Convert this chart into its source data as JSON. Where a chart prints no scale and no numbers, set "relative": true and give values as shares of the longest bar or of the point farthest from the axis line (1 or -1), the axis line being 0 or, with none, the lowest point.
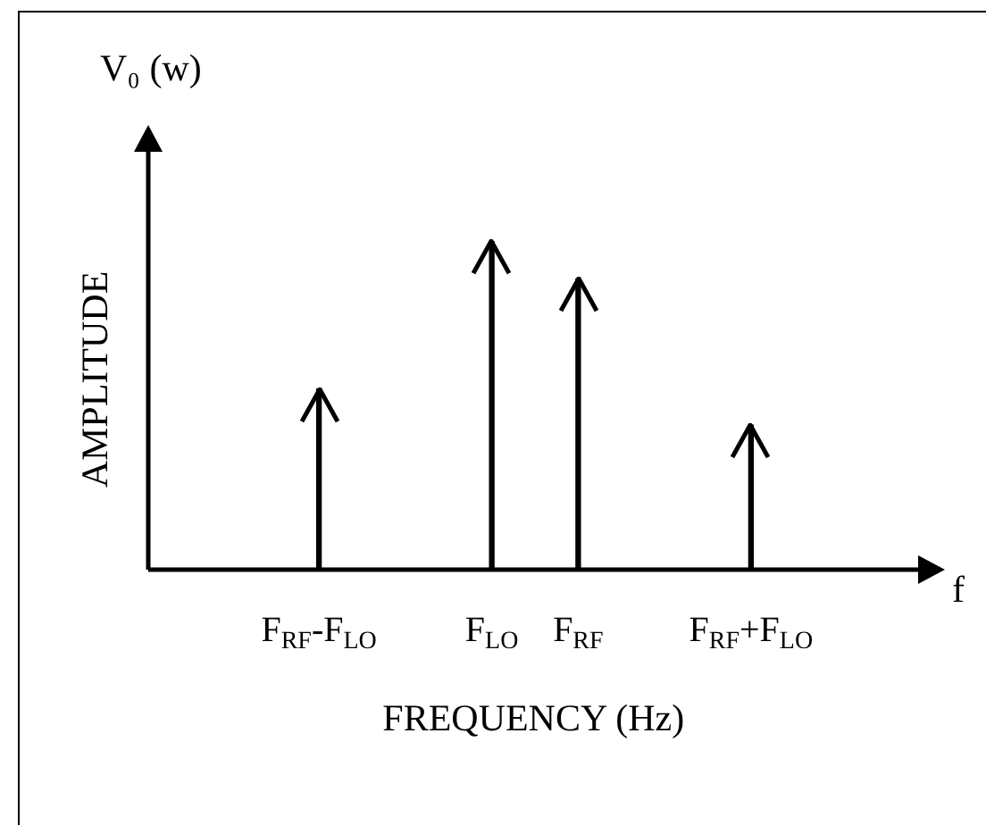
{
  "chart_data": {
    "type": "bar",
    "relative": true,
    "color": "#000000",
    "categories": [
      null,
      "F$_{RF}$-F$_{LO}$",
      null,
      "F$_{LO}$",
      "F$_{RF}$",
      null,
      "F$_{RF}$+F$_{LO}$",
      null
    ],
    "values": [
      null,
      0.55,
      null,
      1,
      0.885,
      null,
      0.44,
      null
    ],
    "xlabel": "FREQUENCY (Hz)",
    "ylabel": "AMPLITUDE",
    "annotations": [
      "V₀ (w)",
      "f"
    ],
    "legend": false
  }
}
